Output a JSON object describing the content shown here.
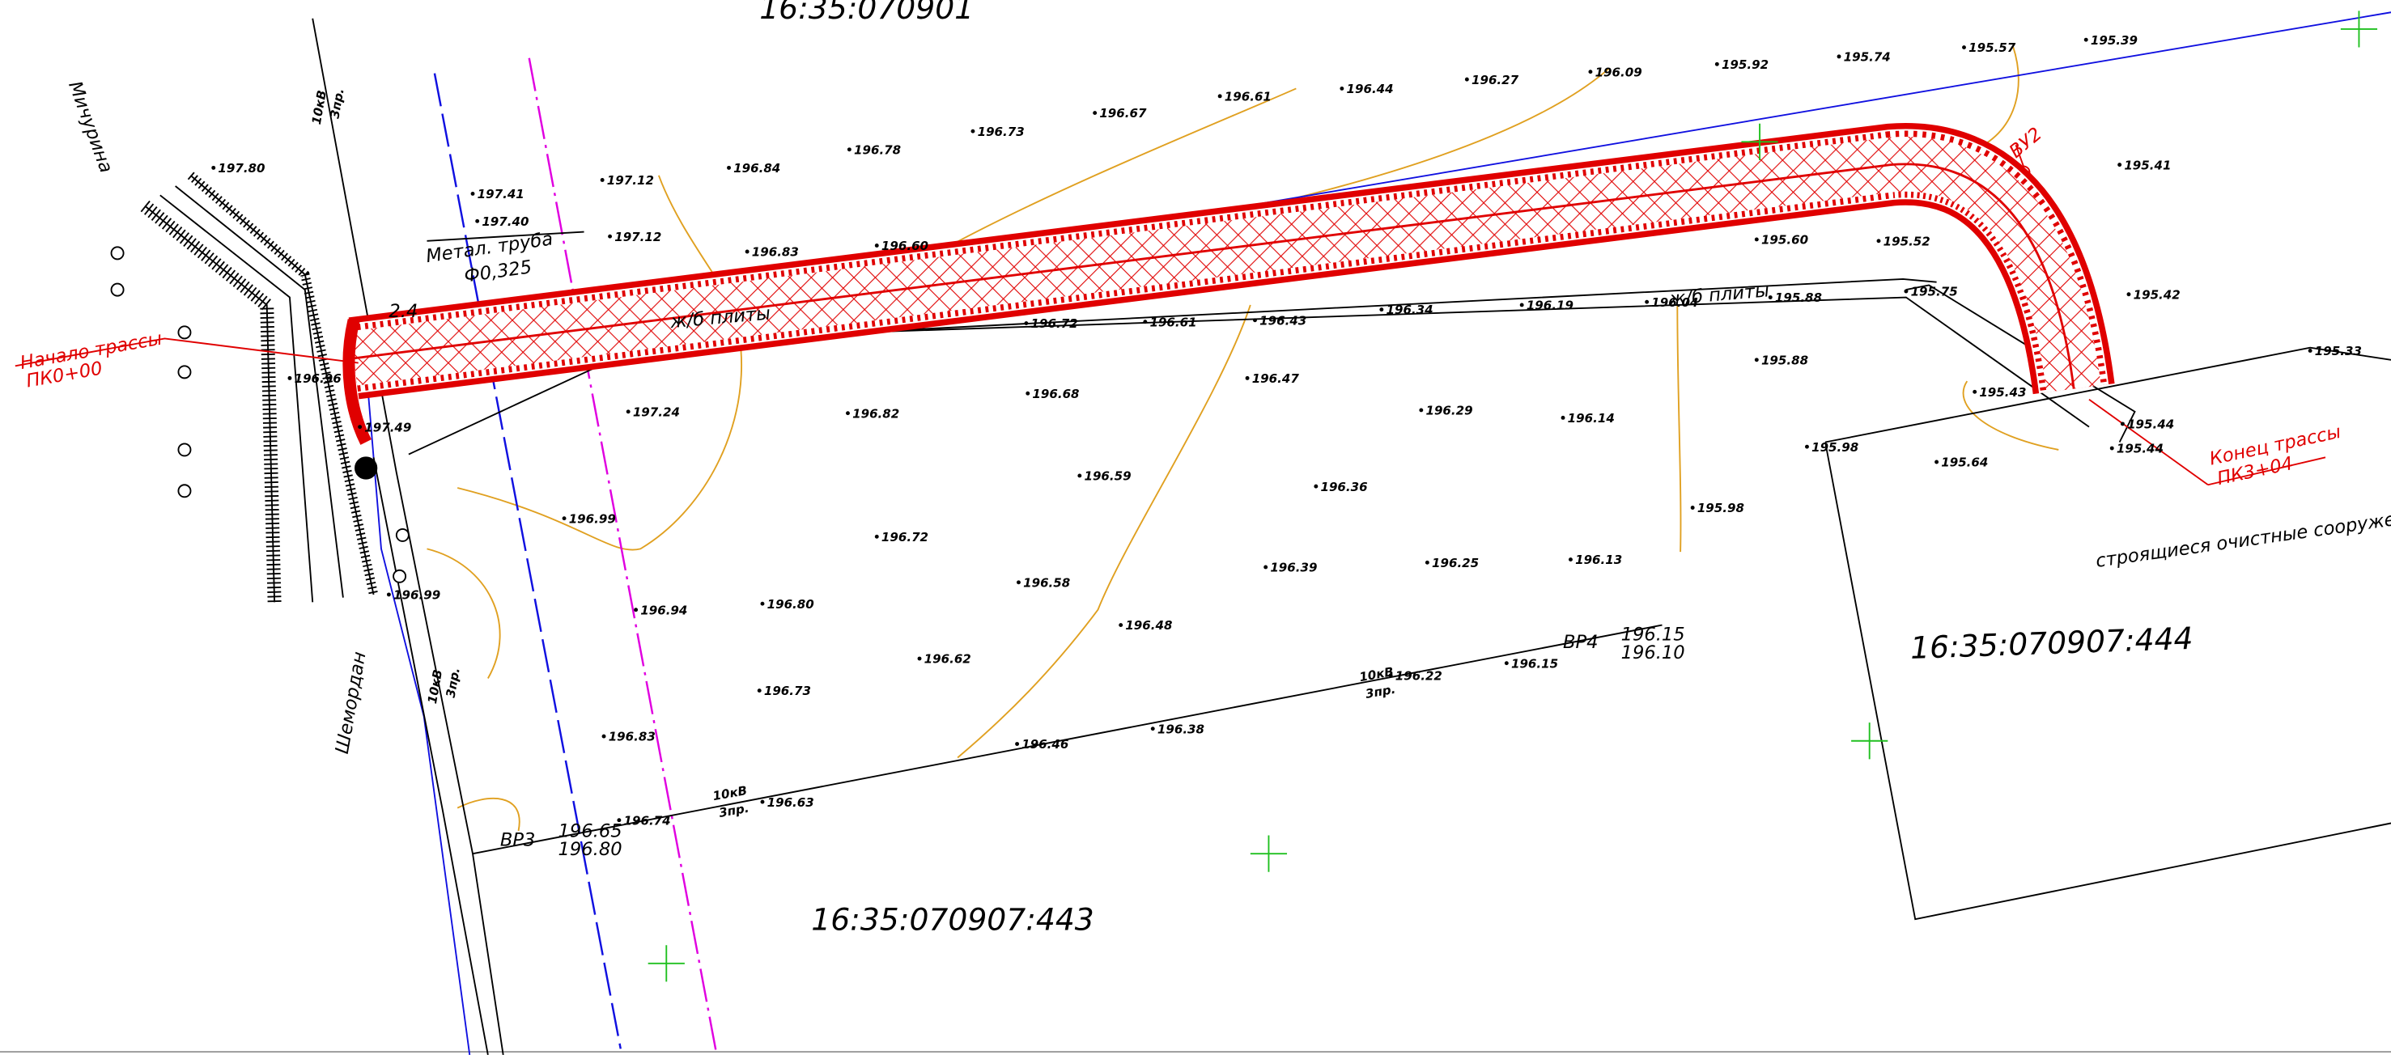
{
  "labels": {
    "sheet_top": "16:35:070901",
    "parcel_443": "16:35:070907:443",
    "parcel_444": "16:35:070907:444",
    "street_michurina": "Мичурина",
    "street_shemordan": "Шемордан",
    "start_title": "Начало трассы",
    "start_pk": "ПК0+00",
    "end_title": "Конец трассы",
    "end_pk": "ПК3+04",
    "vu2": "ВУ2",
    "pipe_title": "Метал. труба",
    "pipe_diam": "Ф0,325",
    "slabs_1": "ж/б плиты",
    "slabs_2": "ж/б плиты",
    "treatment": "строящиеся очистные сооружения",
    "vr3": "ВР3",
    "vr3_top": "196.65",
    "vr3_bottom": "196.80",
    "vr4": "ВР4",
    "vr4_top": "196.15",
    "vr4_bottom": "196.10",
    "kv_1": "10кВ",
    "kv_1b": "3пр.",
    "kv_2": "10кВ",
    "kv_2b": "3пр.",
    "kv_3": "10кВ",
    "kv_3b": "3пр.",
    "kv_4": "10кВ",
    "kv_4b": "3пр.",
    "dim_24": "2.4"
  },
  "elevations": [
    "197.41",
    "197.40",
    "197.12",
    "197.12",
    "196.84",
    "196.78",
    "196.73",
    "196.67",
    "196.61",
    "196.44",
    "196.27",
    "196.09",
    "195.92",
    "195.74",
    "195.57",
    "195.39",
    "196.83",
    "196.60",
    "195.60",
    "195.52",
    "195.41",
    "195.42",
    "195.88",
    "195.33",
    "197.24",
    "196.82",
    "196.68",
    "196.47",
    "196.29",
    "196.14",
    "195.43",
    "195.44",
    "195.44",
    "195.98",
    "195.64",
    "196.59",
    "196.36",
    "195.98",
    "196.99",
    "196.72",
    "196.58",
    "196.39",
    "196.25",
    "196.13",
    "196.94",
    "196.80",
    "196.48",
    "196.62",
    "196.22",
    "196.15",
    "196.73",
    "196.38",
    "196.83",
    "196.46",
    "196.63",
    "196.74",
    "196.72",
    "196.61",
    "196.43",
    "196.34",
    "196.19",
    "196.04",
    "195.88",
    "195.75",
    "197.49",
    "196.99",
    "197.80",
    "196.96"
  ]
}
